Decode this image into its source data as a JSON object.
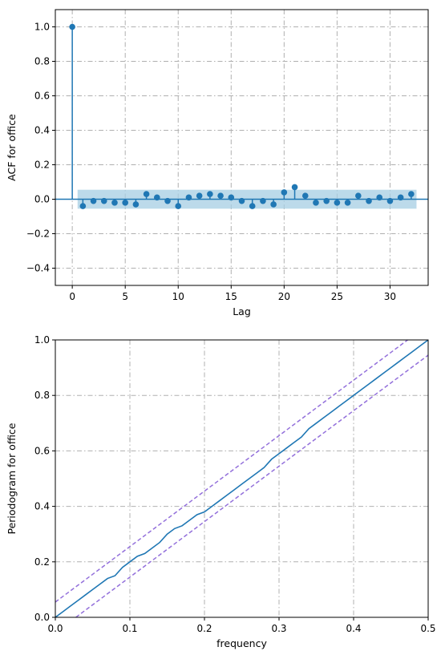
{
  "chart_data": [
    {
      "type": "scatter",
      "subtype": "acf-stem",
      "title": "",
      "xlabel": "Lag",
      "ylabel": "ACF for office",
      "xlim": [
        -1.6,
        33.6
      ],
      "ylim": [
        -0.5,
        1.1
      ],
      "x_ticks": [
        0,
        5,
        10,
        15,
        20,
        25,
        30
      ],
      "x_tick_labels": [
        "0",
        "5",
        "10",
        "15",
        "20",
        "25",
        "30"
      ],
      "y_ticks": [
        -0.4,
        -0.2,
        0.0,
        0.2,
        0.4,
        0.6,
        0.8,
        1.0
      ],
      "y_tick_labels": [
        "−0.4",
        "−0.2",
        "0.0",
        "0.2",
        "0.4",
        "0.6",
        "0.8",
        "1.0"
      ],
      "grid": true,
      "confidence_band": [
        -0.055,
        0.055
      ],
      "lags": [
        0,
        1,
        2,
        3,
        4,
        5,
        6,
        7,
        8,
        9,
        10,
        11,
        12,
        13,
        14,
        15,
        16,
        17,
        18,
        19,
        20,
        21,
        22,
        23,
        24,
        25,
        26,
        27,
        28,
        29,
        30,
        31,
        32
      ],
      "values": [
        1.0,
        -0.04,
        -0.01,
        -0.01,
        -0.02,
        -0.02,
        -0.03,
        0.03,
        0.01,
        -0.01,
        -0.04,
        0.01,
        0.02,
        0.03,
        0.02,
        0.01,
        -0.01,
        -0.04,
        -0.01,
        -0.03,
        0.04,
        0.07,
        0.02,
        -0.02,
        -0.01,
        -0.02,
        -0.02,
        0.02,
        -0.01,
        0.01,
        -0.01,
        0.01,
        0.03
      ],
      "colors": {
        "line": "#1f77b4",
        "band": "#a6cee3"
      }
    },
    {
      "type": "line",
      "subtype": "cumulative-periodogram",
      "title": "",
      "xlabel": "frequency",
      "ylabel": "Periodogram for office",
      "xlim": [
        0.0,
        0.5
      ],
      "ylim": [
        0.0,
        1.0
      ],
      "x_ticks": [
        0.0,
        0.1,
        0.2,
        0.3,
        0.4,
        0.5
      ],
      "x_tick_labels": [
        "0.0",
        "0.1",
        "0.2",
        "0.3",
        "0.4",
        "0.5"
      ],
      "y_ticks": [
        0.0,
        0.2,
        0.4,
        0.6,
        0.8,
        1.0
      ],
      "y_tick_labels": [
        "0.0",
        "0.2",
        "0.4",
        "0.6",
        "0.8",
        "1.0"
      ],
      "grid": true,
      "series": [
        {
          "x": [
            0.0,
            0.01,
            0.02,
            0.03,
            0.04,
            0.05,
            0.06,
            0.07,
            0.08,
            0.09,
            0.1,
            0.11,
            0.12,
            0.13,
            0.14,
            0.15,
            0.16,
            0.17,
            0.18,
            0.19,
            0.2,
            0.21,
            0.22,
            0.23,
            0.24,
            0.25,
            0.26,
            0.27,
            0.28,
            0.29,
            0.3,
            0.31,
            0.32,
            0.33,
            0.34,
            0.35,
            0.36,
            0.37,
            0.38,
            0.39,
            0.4,
            0.41,
            0.42,
            0.43,
            0.44,
            0.45,
            0.46,
            0.47,
            0.48,
            0.49,
            0.5
          ],
          "y": [
            0.0,
            0.02,
            0.04,
            0.06,
            0.08,
            0.1,
            0.12,
            0.14,
            0.15,
            0.18,
            0.2,
            0.22,
            0.23,
            0.25,
            0.27,
            0.3,
            0.32,
            0.33,
            0.35,
            0.37,
            0.38,
            0.4,
            0.42,
            0.44,
            0.46,
            0.48,
            0.5,
            0.52,
            0.54,
            0.57,
            0.59,
            0.61,
            0.63,
            0.65,
            0.68,
            0.7,
            0.72,
            0.74,
            0.76,
            0.78,
            0.8,
            0.82,
            0.84,
            0.86,
            0.88,
            0.9,
            0.92,
            0.94,
            0.96,
            0.98,
            1.0
          ],
          "color": "#1f77b4"
        }
      ],
      "bounds": {
        "offset": 0.055,
        "color": "#9370db"
      }
    }
  ]
}
